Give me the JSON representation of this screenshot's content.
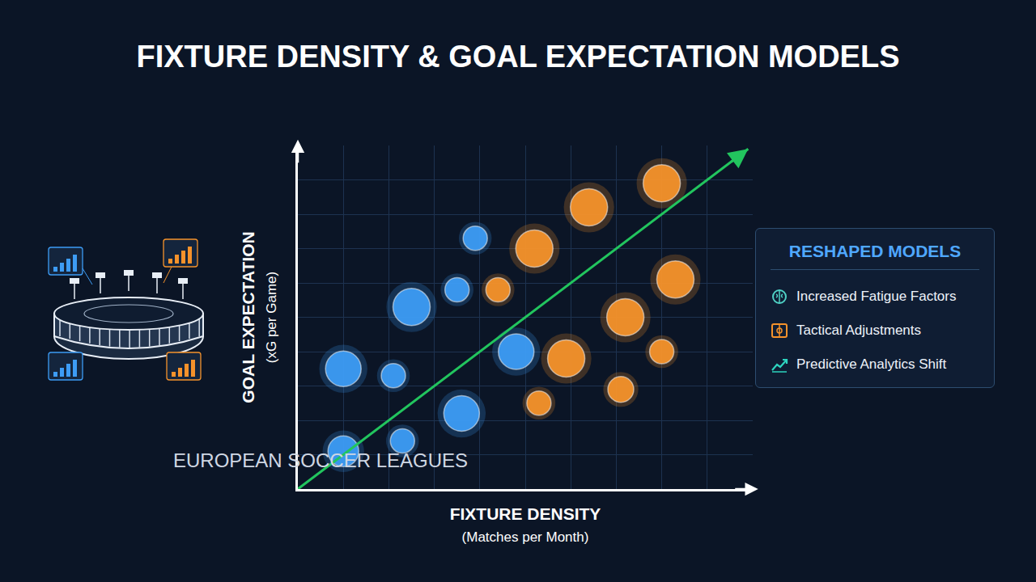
{
  "chart_data": {
    "type": "scatter",
    "title": "FIXTURE DENSITY & GOAL EXPECTATION MODELS",
    "subtitle": "EUROPEAN SOCCER LEAGUES",
    "x_label": "FIXTURE DENSITY",
    "x_unit": "(Matches per Month)",
    "y_label": "GOAL EXPECTATION",
    "y_unit": "(xG per Game)",
    "xlim": [
      0,
      10
    ],
    "ylim": [
      0,
      10
    ],
    "xticks": [
      0,
      1,
      2,
      3,
      4,
      5,
      6,
      7,
      8,
      9,
      10
    ],
    "yticks": [
      0,
      1,
      2,
      3,
      4,
      5,
      6,
      7,
      8,
      9,
      10
    ],
    "grid": true,
    "tick_labels": false,
    "marker": "circle",
    "series": [
      {
        "color": "#3d9cf5",
        "x": [
          1.0,
          2.3,
          1.0,
          2.1,
          3.6,
          2.5,
          3.5,
          3.9,
          4.8
        ],
        "values": [
          1.1,
          1.4,
          3.5,
          3.3,
          2.2,
          5.3,
          5.8,
          7.3,
          4.0
        ],
        "sizes": [
          38,
          30,
          44,
          30,
          44,
          46,
          30,
          30,
          44
        ]
      },
      {
        "color": "#f5922b",
        "x": [
          8.0,
          6.4,
          5.2,
          4.4,
          8.3,
          7.2,
          5.9,
          8.0,
          5.3,
          7.1
        ],
        "values": [
          8.9,
          8.2,
          7.0,
          5.8,
          6.1,
          5.0,
          3.8,
          4.0,
          2.5,
          2.9
        ],
        "sizes": [
          46,
          46,
          46,
          30,
          46,
          46,
          46,
          30,
          30,
          32
        ]
      }
    ],
    "trend_line": {
      "x": [
        0,
        9.9
      ],
      "values": [
        0,
        9.9
      ],
      "color": "#22c55e",
      "line_style": "arrow"
    }
  },
  "side_panel": {
    "title": "RESHAPED MODELS",
    "items": [
      "Increased Fatigue Factors",
      "Tactical Adjustments",
      "Predictive Analytics Shift"
    ]
  }
}
